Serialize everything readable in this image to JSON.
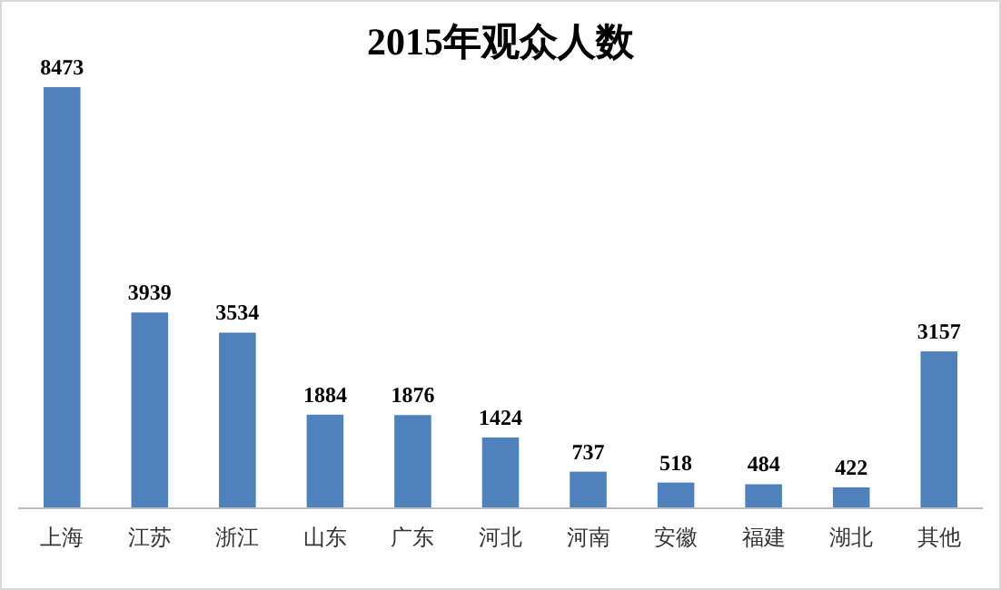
{
  "chart_data": {
    "type": "bar",
    "title": "2015年观众人数",
    "categories": [
      "上海",
      "江苏",
      "浙江",
      "山东",
      "广东",
      "河北",
      "河南",
      "安徽",
      "福建",
      "湖北",
      "其他"
    ],
    "values": [
      8473,
      3939,
      3534,
      1884,
      1876,
      1424,
      737,
      518,
      484,
      422,
      3157
    ],
    "color": "#4f81bd",
    "data_labels": true
  }
}
